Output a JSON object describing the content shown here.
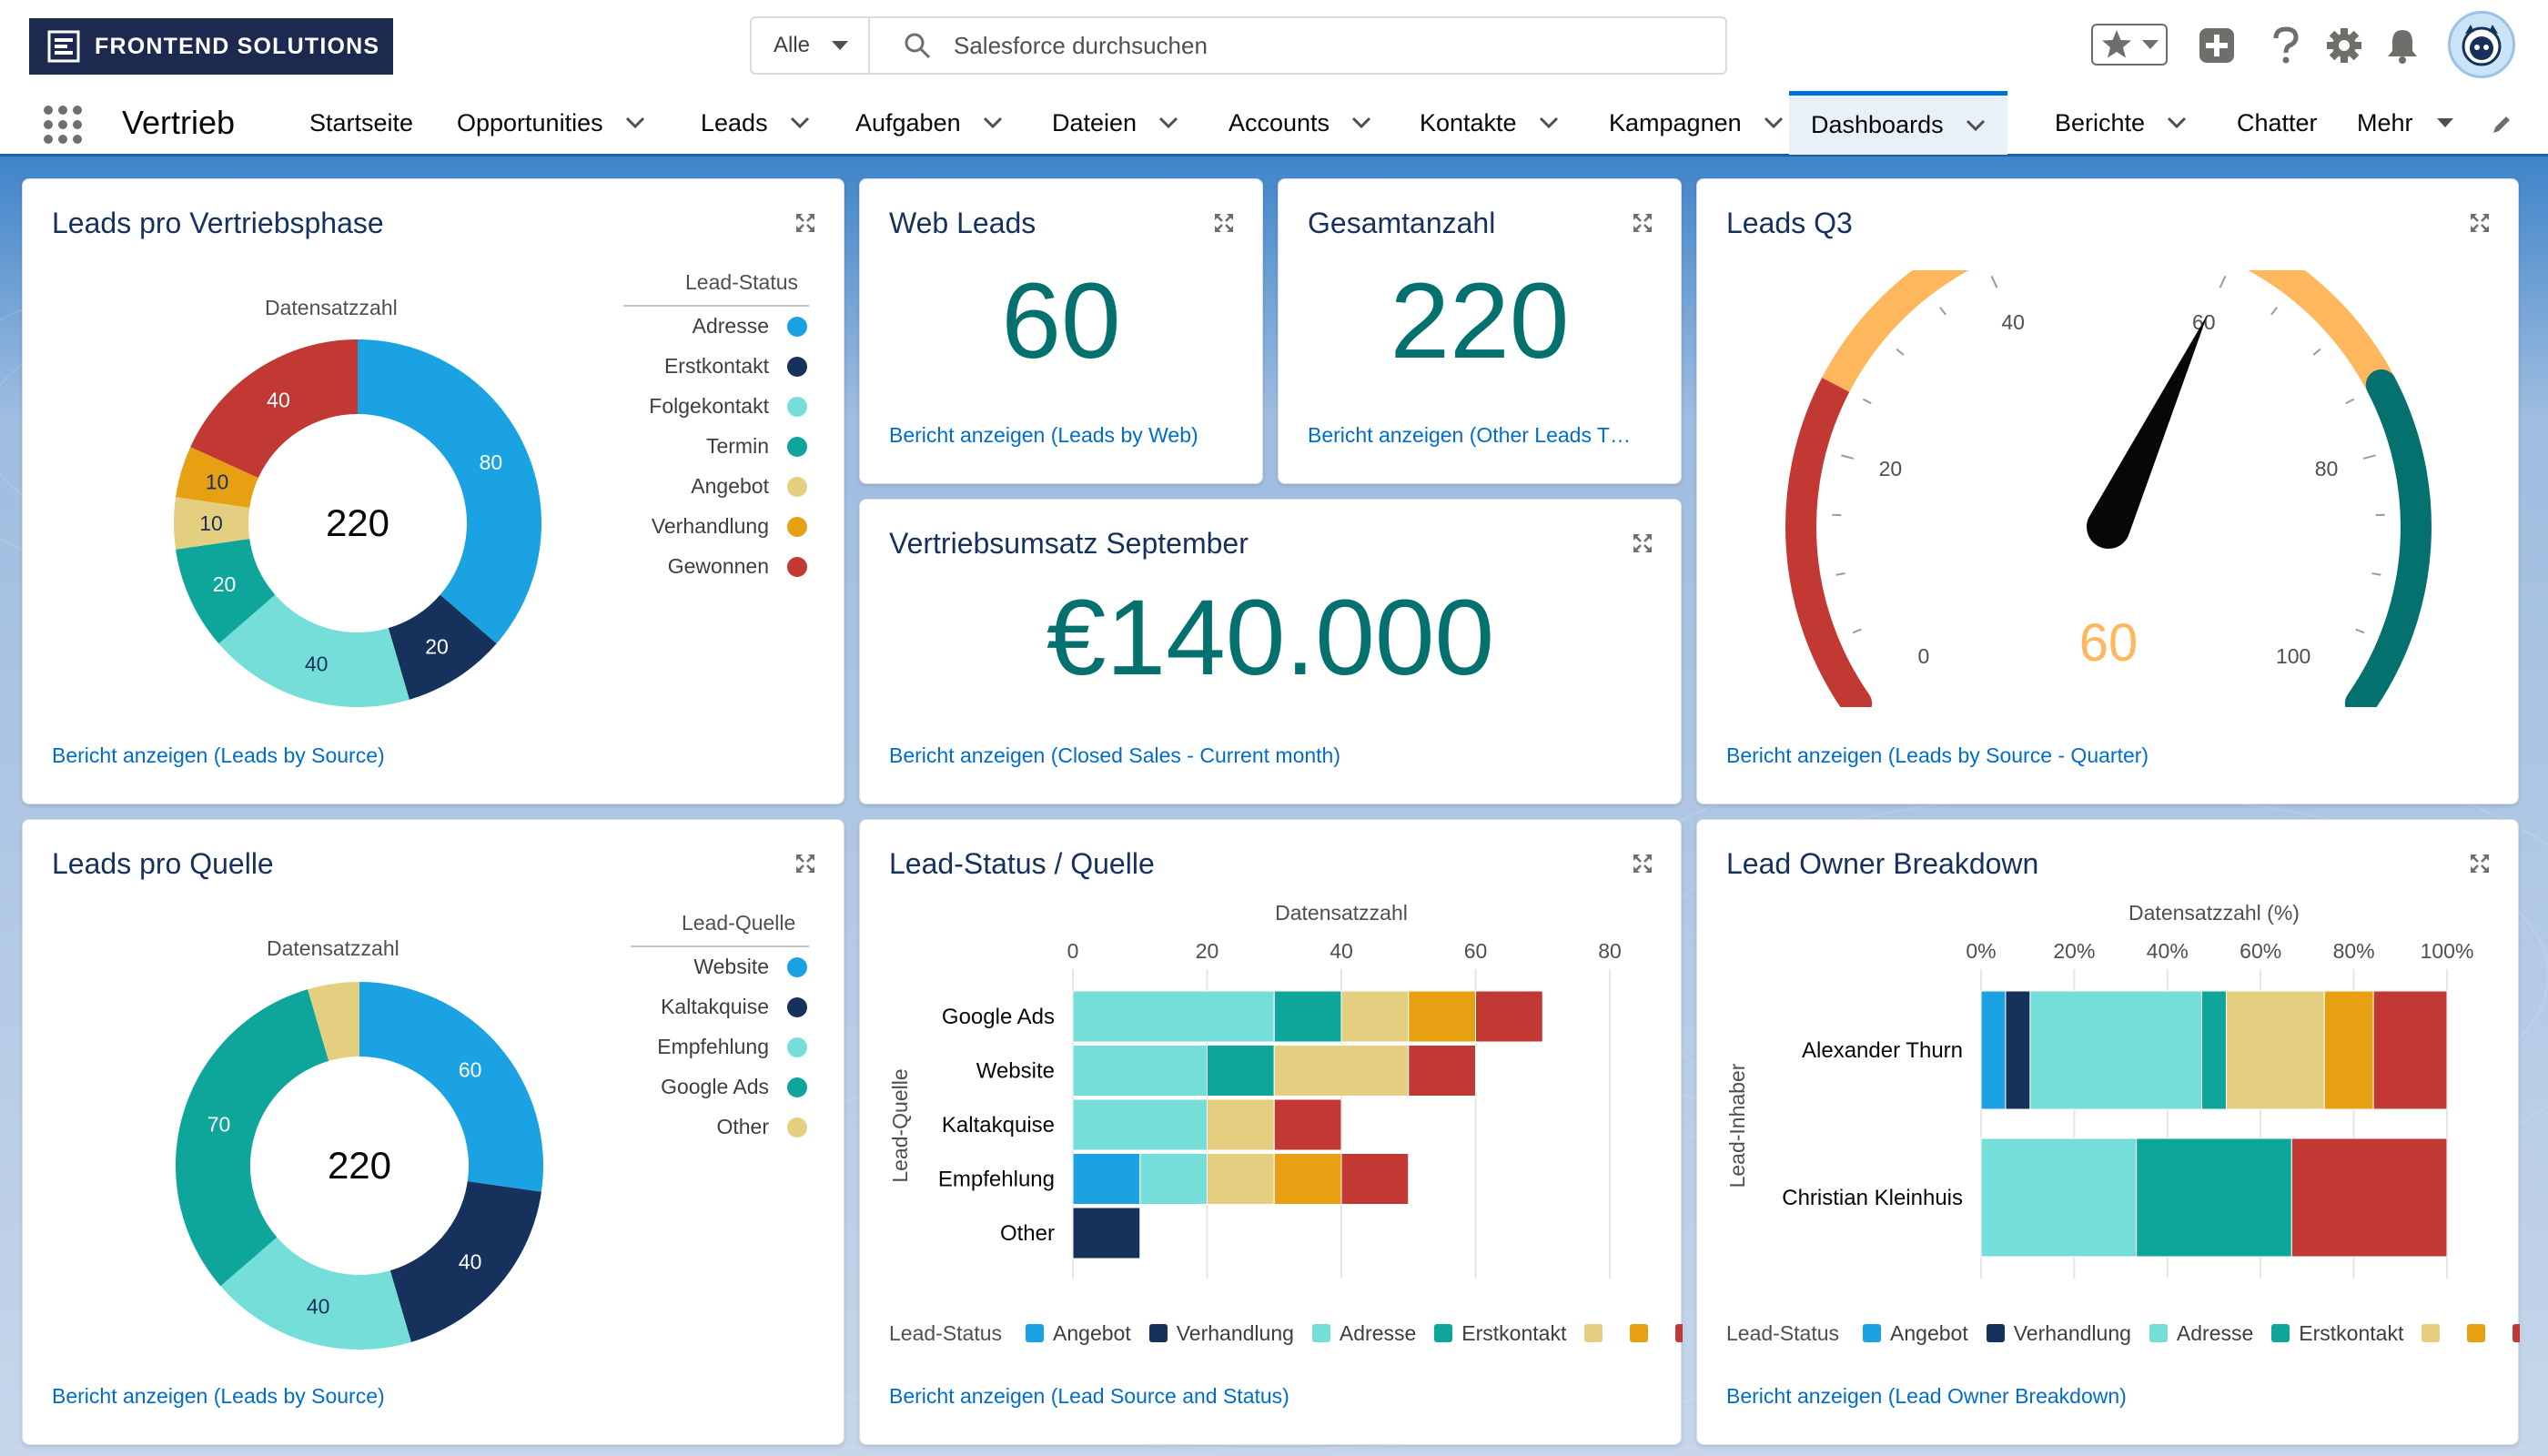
{
  "header": {
    "logo_text": "FRONTEND SOLUTIONS",
    "search_scope": "Alle",
    "search_placeholder": "Salesforce durchsuchen"
  },
  "nav": {
    "app_name": "Vertrieb",
    "items": [
      {
        "label": "Startseite",
        "chevron": false
      },
      {
        "label": "Opportunities",
        "chevron": true
      },
      {
        "label": "Leads",
        "chevron": true
      },
      {
        "label": "Aufgaben",
        "chevron": true
      },
      {
        "label": "Dateien",
        "chevron": true
      },
      {
        "label": "Accounts",
        "chevron": true
      },
      {
        "label": "Kontakte",
        "chevron": true
      },
      {
        "label": "Kampagnen",
        "chevron": true
      },
      {
        "label": "Dashboards",
        "chevron": true,
        "active": true
      },
      {
        "label": "Berichte",
        "chevron": true
      },
      {
        "label": "Chatter",
        "chevron": false
      },
      {
        "label": "Mehr",
        "chevron": true
      }
    ]
  },
  "colors": {
    "adresse": "#1ba2e3",
    "erstkontakt": "#16325c",
    "folgekontakt": "#76ded9",
    "termin": "#0ea59a",
    "angebot": "#e4cf80",
    "verhandlung": "#e6a012",
    "gewonnen": "#c23934",
    "accent": "#04716e",
    "gauge_value": "#ffb75d"
  },
  "cards": {
    "leads_phase": {
      "title": "Leads pro Vertriebsphase",
      "subtitle": "Datensatzzahl",
      "center": "220",
      "legend_title": "Lead-Status",
      "link": "Bericht anzeigen (Leads by Source)"
    },
    "web_leads": {
      "title": "Web Leads",
      "value": "60",
      "link": "Bericht anzeigen (Leads by Web)"
    },
    "gesamt": {
      "title": "Gesamtanzahl",
      "value": "220",
      "link": "Bericht anzeigen (Other Leads T…"
    },
    "umsatz": {
      "title": "Vertriebsumsatz September",
      "value": "€140.000",
      "link": "Bericht anzeigen (Closed Sales - Current month)"
    },
    "leads_q3": {
      "title": "Leads Q3",
      "value": "60",
      "ticks": [
        "0",
        "20",
        "40",
        "60",
        "80",
        "100"
      ],
      "link": "Bericht anzeigen (Leads by Source - Quarter)"
    },
    "leads_quelle": {
      "title": "Leads pro Quelle",
      "subtitle": "Datensatzzahl",
      "center": "220",
      "legend_title": "Lead-Quelle",
      "link": "Bericht anzeigen (Leads by Source)"
    },
    "status_quelle": {
      "title": "Lead-Status / Quelle",
      "x_title": "Datensatzzahl",
      "y_title": "Lead-Quelle",
      "legend_title": "Lead-Status",
      "link": "Bericht anzeigen (Lead Source and Status)"
    },
    "owner": {
      "title": "Lead Owner Breakdown",
      "x_title": "Datensatzzahl (%)",
      "y_title": "Lead-Inhaber",
      "legend_title": "Lead-Status",
      "link": "Bericht anzeigen (Lead Owner Breakdown)"
    }
  },
  "chart_data": [
    {
      "type": "pie",
      "title": "Leads pro Vertriebsphase",
      "center_label": "220",
      "legend_title": "Lead-Status",
      "categories": [
        "Adresse",
        "Erstkontakt",
        "Folgekontakt",
        "Termin",
        "Angebot",
        "Verhandlung",
        "Gewonnen"
      ],
      "values": [
        80,
        20,
        40,
        20,
        10,
        10,
        40
      ],
      "colors": [
        "#1ba2e3",
        "#16325c",
        "#76ded9",
        "#0ea59a",
        "#e4cf80",
        "#e6a012",
        "#c23934"
      ]
    },
    {
      "type": "pie",
      "title": "Leads pro Quelle",
      "center_label": "220",
      "legend_title": "Lead-Quelle",
      "categories": [
        "Website",
        "Kaltakquise",
        "Empfehlung",
        "Google Ads",
        "Other"
      ],
      "values": [
        60,
        40,
        40,
        70,
        10
      ],
      "colors": [
        "#1ba2e3",
        "#16325c",
        "#76ded9",
        "#0ea59a",
        "#e4cf80"
      ],
      "labels": [
        "60",
        "40",
        "40",
        "70",
        ""
      ]
    },
    {
      "type": "bar",
      "title": "Lead-Status / Quelle",
      "orientation": "horizontal",
      "stacked": true,
      "xlabel": "Datensatzzahl",
      "ylabel": "Lead-Quelle",
      "xlim": [
        0,
        80
      ],
      "xticks": [
        "0",
        "20",
        "40",
        "60",
        "80"
      ],
      "categories": [
        "Google Ads",
        "Website",
        "Kaltakquise",
        "Empfehlung",
        "Other"
      ],
      "series": [
        {
          "name": "Angebot",
          "color": "#1ba2e3",
          "values": [
            0,
            0,
            0,
            10,
            0
          ]
        },
        {
          "name": "Verhandlung",
          "color": "#16325c",
          "values": [
            0,
            0,
            0,
            0,
            10
          ]
        },
        {
          "name": "Adresse",
          "color": "#76ded9",
          "values": [
            30,
            20,
            20,
            10,
            0
          ]
        },
        {
          "name": "Erstkontakt",
          "color": "#0ea59a",
          "values": [
            10,
            10,
            0,
            0,
            0
          ]
        },
        {
          "name": "",
          "color": "#e4cf80",
          "values": [
            10,
            20,
            10,
            10,
            0
          ]
        },
        {
          "name": "",
          "color": "#e6a012",
          "values": [
            10,
            0,
            0,
            10,
            0
          ]
        },
        {
          "name": "",
          "color": "#c23934",
          "values": [
            10,
            10,
            10,
            10,
            0
          ]
        }
      ]
    },
    {
      "type": "bar",
      "title": "Lead Owner Breakdown",
      "orientation": "horizontal",
      "stacked": true,
      "percent": true,
      "xlabel": "Datensatzzahl (%)",
      "ylabel": "Lead-Inhaber",
      "xticks": [
        "0%",
        "20%",
        "40%",
        "60%",
        "80%",
        "100%"
      ],
      "categories": [
        "Alexander Thurn",
        "Christian Kleinhuis"
      ],
      "series": [
        {
          "name": "Angebot",
          "color": "#1ba2e3",
          "values": [
            5,
            0
          ]
        },
        {
          "name": "Verhandlung",
          "color": "#16325c",
          "values": [
            5,
            0
          ]
        },
        {
          "name": "Adresse",
          "color": "#76ded9",
          "values": [
            35,
            33
          ]
        },
        {
          "name": "Erstkontakt",
          "color": "#0ea59a",
          "values": [
            5,
            33
          ]
        },
        {
          "name": "",
          "color": "#e4cf80",
          "values": [
            20,
            0
          ]
        },
        {
          "name": "",
          "color": "#e6a012",
          "values": [
            10,
            0
          ]
        },
        {
          "name": "",
          "color": "#c23934",
          "values": [
            15,
            33
          ]
        }
      ]
    },
    {
      "type": "gauge",
      "title": "Leads Q3",
      "value": 60,
      "range": [
        0,
        100
      ],
      "ticks": [
        "0",
        "20",
        "40",
        "60",
        "80",
        "100"
      ],
      "bands": [
        {
          "from": 0,
          "to": 25,
          "color": "#c23934"
        },
        {
          "from": 25,
          "to": 75,
          "color": "#ffb75d"
        },
        {
          "from": 75,
          "to": 100,
          "color": "#04716e"
        }
      ]
    }
  ]
}
